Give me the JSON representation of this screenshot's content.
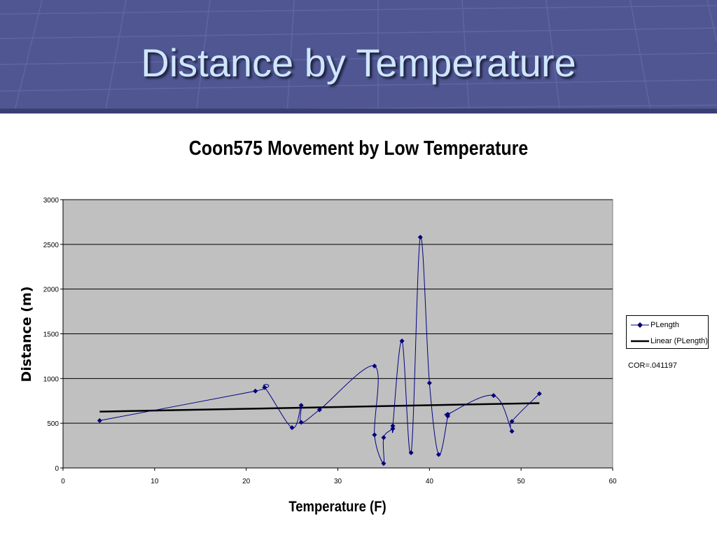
{
  "slide": {
    "title": "Distance by Temperature"
  },
  "colors": {
    "banner": "#4f5691",
    "plot_bg": "#c0c0c0",
    "series": "#000080",
    "trend": "#000000"
  },
  "annotation": "COR=.041197",
  "chart_data": {
    "type": "scatter",
    "title": "Coon575 Movement by Low Temperature",
    "xlabel": "Temperature (F)",
    "ylabel": "Distance (m)",
    "xlim": [
      0,
      60
    ],
    "ylim": [
      0,
      3000
    ],
    "xticks": [
      0,
      10,
      20,
      30,
      40,
      50,
      60
    ],
    "yticks": [
      0,
      500,
      1000,
      1500,
      2000,
      2500,
      3000
    ],
    "grid": "horizontal",
    "legend": "right",
    "series": [
      {
        "name": "PLength",
        "style": "smoothed line with diamond markers",
        "x": [
          4,
          21,
          22,
          25,
          26,
          26,
          28,
          34,
          34,
          35,
          35,
          36,
          36,
          37,
          38,
          39,
          40,
          41,
          42,
          42,
          47,
          49,
          49,
          52
        ],
        "y": [
          530,
          860,
          900,
          450,
          700,
          510,
          650,
          1140,
          370,
          50,
          340,
          440,
          470,
          1420,
          170,
          2580,
          950,
          150,
          580,
          600,
          810,
          410,
          520,
          830
        ]
      },
      {
        "name": "Linear (PLength)",
        "style": "linear trendline",
        "x": [
          4,
          52
        ],
        "y": [
          630,
          725
        ]
      }
    ]
  }
}
